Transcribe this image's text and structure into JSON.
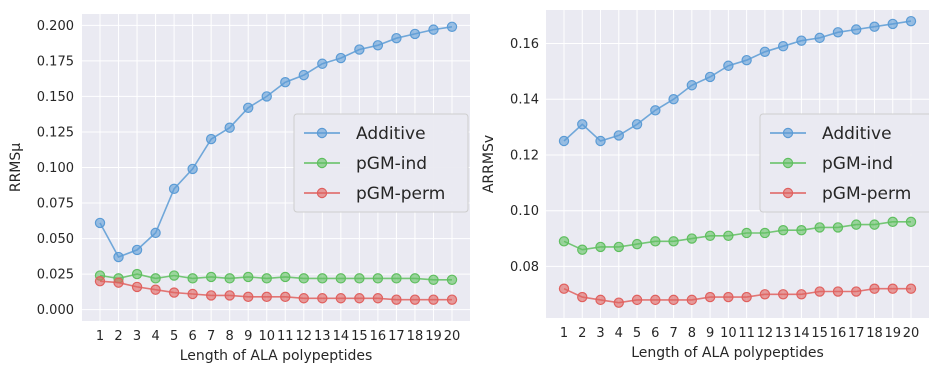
{
  "chart_data": [
    {
      "type": "line",
      "x": [
        1,
        2,
        3,
        4,
        5,
        6,
        7,
        8,
        9,
        10,
        11,
        12,
        13,
        14,
        15,
        16,
        17,
        18,
        19,
        20
      ],
      "xlabel": "Length of ALA polypeptides",
      "ylabel": "RRMSμ",
      "ylim": [
        -0.008,
        0.208
      ],
      "yticks": [
        "0.000",
        "0.025",
        "0.050",
        "0.075",
        "0.100",
        "0.125",
        "0.150",
        "0.175",
        "0.200"
      ],
      "grid": true,
      "legend": "center-right",
      "series": [
        {
          "name": "Additive",
          "color": "#5b9bd5",
          "values": [
            0.061,
            0.037,
            0.042,
            0.054,
            0.085,
            0.099,
            0.12,
            0.128,
            0.142,
            0.15,
            0.16,
            0.165,
            0.173,
            0.177,
            0.183,
            0.186,
            0.191,
            0.194,
            0.197,
            0.199
          ]
        },
        {
          "name": "pGM-ind",
          "color": "#5fbf5f",
          "values": [
            0.024,
            0.022,
            0.025,
            0.022,
            0.024,
            0.022,
            0.023,
            0.022,
            0.023,
            0.022,
            0.023,
            0.022,
            0.022,
            0.022,
            0.022,
            0.022,
            0.022,
            0.022,
            0.021,
            0.021
          ]
        },
        {
          "name": "pGM-perm",
          "color": "#e0605e",
          "values": [
            0.02,
            0.019,
            0.016,
            0.014,
            0.012,
            0.011,
            0.01,
            0.01,
            0.009,
            0.009,
            0.009,
            0.008,
            0.008,
            0.008,
            0.008,
            0.008,
            0.007,
            0.007,
            0.007,
            0.007
          ]
        }
      ]
    },
    {
      "type": "line",
      "x": [
        1,
        2,
        3,
        4,
        5,
        6,
        7,
        8,
        9,
        10,
        11,
        12,
        13,
        14,
        15,
        16,
        17,
        18,
        19,
        20
      ],
      "xlabel": "Length of ALA polypeptides",
      "ylabel": "ARRMSv",
      "ylim": [
        0.0615,
        0.172
      ],
      "yticks": [
        "0.08",
        "0.10",
        "0.12",
        "0.14",
        "0.16"
      ],
      "grid": true,
      "legend": "center-right",
      "series": [
        {
          "name": "Additive",
          "color": "#5b9bd5",
          "values": [
            0.125,
            0.131,
            0.125,
            0.127,
            0.131,
            0.136,
            0.14,
            0.145,
            0.148,
            0.152,
            0.154,
            0.157,
            0.159,
            0.161,
            0.162,
            0.164,
            0.165,
            0.166,
            0.167,
            0.168
          ]
        },
        {
          "name": "pGM-ind",
          "color": "#5fbf5f",
          "values": [
            0.089,
            0.086,
            0.087,
            0.087,
            0.088,
            0.089,
            0.089,
            0.09,
            0.091,
            0.091,
            0.092,
            0.092,
            0.093,
            0.093,
            0.094,
            0.094,
            0.095,
            0.095,
            0.096,
            0.096
          ]
        },
        {
          "name": "pGM-perm",
          "color": "#e0605e",
          "values": [
            0.072,
            0.069,
            0.068,
            0.067,
            0.068,
            0.068,
            0.068,
            0.068,
            0.069,
            0.069,
            0.069,
            0.07,
            0.07,
            0.07,
            0.071,
            0.071,
            0.071,
            0.072,
            0.072,
            0.072
          ]
        }
      ]
    }
  ]
}
